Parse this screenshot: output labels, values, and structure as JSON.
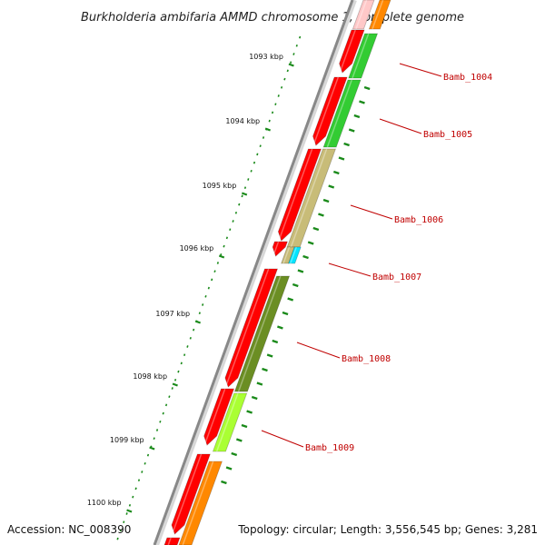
{
  "title": "Burkholderia ambifaria AMMD chromosome 1, complete genome",
  "footer": {
    "accession": "Accession: NC_008390",
    "topology": "Topology: circular; Length: 3,556,545 bp; Genes: 3,281"
  },
  "ticks": [
    {
      "label": "1093 kbp"
    },
    {
      "label": "1094 kbp"
    },
    {
      "label": "1095 kbp"
    },
    {
      "label": "1096 kbp"
    },
    {
      "label": "1097 kbp"
    },
    {
      "label": "1098 kbp"
    },
    {
      "label": "1099 kbp"
    },
    {
      "label": "1100 kbp"
    }
  ],
  "genes": [
    {
      "label": "Bamb_1004"
    },
    {
      "label": "Bamb_1005"
    },
    {
      "label": "Bamb_1006"
    },
    {
      "label": "Bamb_1007"
    },
    {
      "label": "Bamb_1008"
    },
    {
      "label": "Bamb_1009"
    }
  ],
  "colors": {
    "cds": "#ff0000",
    "orange": "#ff8800",
    "green": "#33cc33",
    "khaki": "#c8bc78",
    "cyan": "#00e5ff",
    "olive": "#6b8e23",
    "lime": "#aaff33",
    "backbone": "#888888",
    "tick_dots": "#1a8a1a",
    "gene_label": "#c00000"
  }
}
